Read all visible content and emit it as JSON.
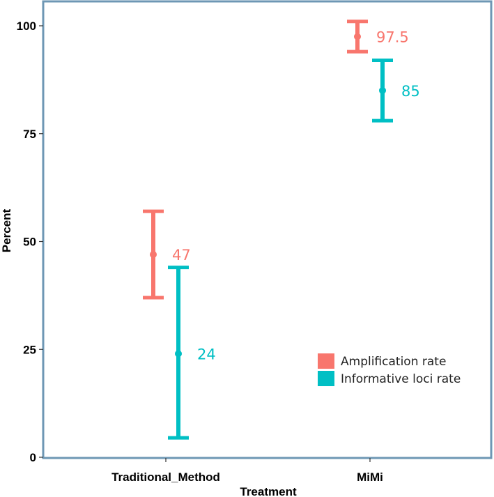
{
  "chart_data": {
    "type": "errorbar",
    "title": "",
    "xlabel": "Treatment",
    "ylabel": "Percent",
    "categories": [
      "Traditional_Method",
      "MiMi"
    ],
    "ylim": [
      0,
      100
    ],
    "yticks": [
      0,
      25,
      50,
      75,
      100
    ],
    "grid": false,
    "legend_position": "bottom-right",
    "series": [
      {
        "name": "Amplification rate",
        "color": "#F8766D",
        "points": [
          {
            "category": "Traditional_Method",
            "value": 47,
            "lower": 37,
            "upper": 57,
            "label": "47"
          },
          {
            "category": "MiMi",
            "value": 97.5,
            "lower": 94,
            "upper": 101,
            "label": "97.5"
          }
        ]
      },
      {
        "name": "Informative loci rate",
        "color": "#00BFC4",
        "points": [
          {
            "category": "Traditional_Method",
            "value": 24,
            "lower": 4.5,
            "upper": 44,
            "label": "24"
          },
          {
            "category": "MiMi",
            "value": 85,
            "lower": 78,
            "upper": 92,
            "label": "85"
          }
        ]
      }
    ]
  },
  "panel_border_color": "#6E97B4"
}
